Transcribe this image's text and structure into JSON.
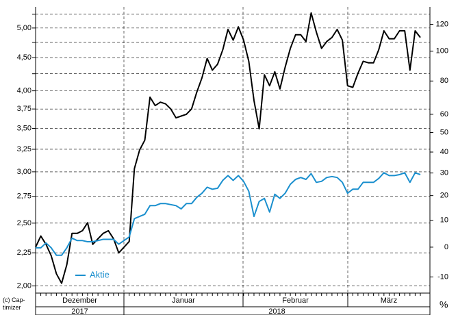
{
  "chart_data": {
    "type": "line",
    "credit": "(c) Cap-timizer",
    "y2_label": "%",
    "months": [
      "Dezember",
      "Januar",
      "Februar",
      "März"
    ],
    "years": [
      "2017",
      "2018"
    ],
    "ylim": [
      1.95,
      5.39
    ],
    "ylog": true,
    "yticks": [
      {
        "value": 2,
        "label": "2,00"
      },
      {
        "value": 2.25,
        "label": "2,25"
      },
      {
        "value": 2.5,
        "label": "2,50"
      },
      {
        "value": 2.75,
        "label": "2,75"
      },
      {
        "value": 3,
        "label": "3,00"
      },
      {
        "value": 3.25,
        "label": "3,25"
      },
      {
        "value": 3.5,
        "label": "3,50"
      },
      {
        "value": 3.75,
        "label": "3,75"
      },
      {
        "value": 4,
        "label": "4,00"
      },
      {
        "value": 4.5,
        "label": "4,50"
      },
      {
        "value": 5,
        "label": "5,00"
      }
    ],
    "yminor": [
      4.25,
      4.75,
      5.25
    ],
    "y2lim": [
      -15,
      134
    ],
    "y2log": true,
    "y2ticks": [
      -10,
      0,
      10,
      20,
      30,
      40,
      50,
      60,
      80,
      100,
      120
    ],
    "grid": true,
    "legend": "lower-left",
    "series": [
      {
        "color": "#000000",
        "axis": "y2",
        "values": [
          0,
          4,
          1,
          -3,
          -9,
          -12,
          -6,
          5,
          5,
          6,
          9,
          1,
          3,
          5,
          6,
          3,
          -2,
          0,
          2,
          32,
          41,
          46,
          70,
          65,
          67,
          66,
          63,
          58,
          59,
          60,
          63,
          73,
          82,
          95,
          87,
          91,
          101,
          116,
          108,
          118,
          108,
          93,
          68,
          52,
          84,
          77,
          86,
          75,
          89,
          102,
          112,
          112,
          107,
          129,
          114,
          102,
          107,
          110,
          116,
          108,
          77,
          76,
          85,
          93,
          92,
          92,
          101,
          115,
          109,
          109,
          115,
          115,
          87,
          115,
          110
        ]
      },
      {
        "name": "Aktie",
        "color": "#1a8fce",
        "values": [
          2.29,
          2.29,
          2.33,
          2.29,
          2.23,
          2.23,
          2.29,
          2.37,
          2.35,
          2.35,
          2.34,
          2.34,
          2.35,
          2.36,
          2.36,
          2.36,
          2.32,
          2.35,
          2.38,
          2.54,
          2.56,
          2.58,
          2.66,
          2.66,
          2.68,
          2.68,
          2.67,
          2.66,
          2.63,
          2.68,
          2.68,
          2.74,
          2.78,
          2.84,
          2.82,
          2.83,
          2.91,
          2.96,
          2.91,
          2.96,
          2.9,
          2.8,
          2.56,
          2.7,
          2.73,
          2.6,
          2.77,
          2.73,
          2.78,
          2.87,
          2.92,
          2.94,
          2.92,
          2.98,
          2.89,
          2.9,
          2.94,
          2.95,
          2.94,
          2.89,
          2.78,
          2.82,
          2.82,
          2.89,
          2.89,
          2.89,
          2.93,
          2.99,
          2.96,
          2.96,
          2.97,
          2.99,
          2.89,
          2.99,
          2.97
        ]
      }
    ]
  }
}
